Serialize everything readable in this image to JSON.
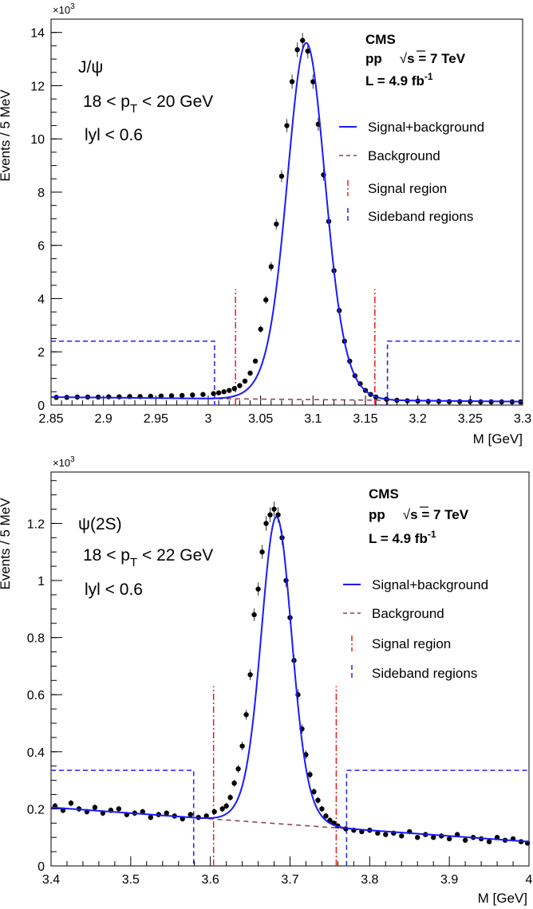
{
  "colors": {
    "fit": "#1a1aff",
    "background": "#8b3a50",
    "signal": "#e8201a",
    "sideband": "#2020ff",
    "points": "#000000"
  },
  "chart_data": [
    {
      "type": "scatter",
      "ylabel": "Events / 5 MeV",
      "xlabel": "M [GeV]",
      "yexp": "×10",
      "yexp_sup": "3",
      "xlim": [
        2.85,
        3.3
      ],
      "ylim": [
        0,
        14.5
      ],
      "xticks": [
        2.85,
        2.9,
        2.95,
        3.0,
        3.05,
        3.1,
        3.15,
        3.2,
        3.25,
        3.3
      ],
      "xtick_labels": [
        "2.85",
        "2.9",
        "2.95",
        "3",
        "3.05",
        "3.1",
        "3.15",
        "3.2",
        "3.25",
        "3.3"
      ],
      "yticks": [
        0,
        2,
        4,
        6,
        8,
        10,
        12,
        14
      ],
      "ytick_labels": [
        "0",
        "2",
        "4",
        "6",
        "8",
        "10",
        "12",
        "14"
      ],
      "ytick_minor": 0.5,
      "labels": {
        "particle": "J/ψ",
        "pt_pre": "18 < p",
        "pt_sub": "T",
        "pt_post": " < 20 GeV",
        "rapidity": "lyl < 0.6"
      },
      "cms": {
        "name": "CMS",
        "pp": "pp",
        "sqrt": "√",
        "s": "s",
        "energy": " = 7 TeV",
        "lumi": "L = 4.9 fb",
        "lumi_sup": "-1"
      },
      "legend": [
        {
          "label": "Signal+background",
          "style": "fit"
        },
        {
          "label": "Background",
          "style": "background"
        },
        {
          "label": "Signal region",
          "style": "signal"
        },
        {
          "label": "Sideband regions",
          "style": "sideband"
        }
      ],
      "signal_region": {
        "edges": [
          3.026,
          3.159
        ],
        "height": 4.35
      },
      "sideband_regions": [
        {
          "from": 2.85,
          "to": 3.006,
          "height": 2.4
        },
        {
          "from": 3.171,
          "to": 3.3,
          "height": 2.4
        }
      ],
      "background_line": {
        "x": [
          2.85,
          3.3
        ],
        "y": [
          0.3,
          0.13
        ]
      },
      "fit": {
        "peak": 3.0935,
        "amplitude": 13.4,
        "sigma": 0.0165,
        "core_fraction": 0.72,
        "tail_width": 1.55
      },
      "points": {
        "x": [
          2.855,
          2.865,
          2.875,
          2.885,
          2.895,
          2.905,
          2.915,
          2.925,
          2.935,
          2.945,
          2.955,
          2.965,
          2.975,
          2.985,
          2.995,
          3.005,
          3.01,
          3.015,
          3.02,
          3.025,
          3.03,
          3.035,
          3.04,
          3.045,
          3.05,
          3.055,
          3.06,
          3.065,
          3.07,
          3.075,
          3.08,
          3.085,
          3.09,
          3.095,
          3.1,
          3.105,
          3.11,
          3.115,
          3.12,
          3.125,
          3.13,
          3.135,
          3.14,
          3.145,
          3.15,
          3.155,
          3.16,
          3.17,
          3.18,
          3.19,
          3.2,
          3.21,
          3.22,
          3.23,
          3.24,
          3.25,
          3.26,
          3.27,
          3.28,
          3.29,
          3.298
        ],
        "y": [
          0.29,
          0.29,
          0.3,
          0.3,
          0.3,
          0.31,
          0.31,
          0.32,
          0.32,
          0.33,
          0.34,
          0.35,
          0.36,
          0.38,
          0.4,
          0.43,
          0.46,
          0.5,
          0.55,
          0.62,
          0.73,
          0.9,
          1.2,
          1.65,
          2.85,
          3.95,
          5.2,
          6.8,
          8.6,
          10.5,
          12.15,
          13.35,
          13.7,
          13.3,
          12.15,
          10.55,
          8.65,
          6.9,
          5.05,
          3.55,
          2.4,
          1.65,
          1.1,
          0.8,
          0.55,
          0.4,
          0.3,
          0.22,
          0.18,
          0.16,
          0.15,
          0.14,
          0.14,
          0.13,
          0.13,
          0.13,
          0.12,
          0.12,
          0.12,
          0.12,
          0.12
        ]
      }
    },
    {
      "type": "scatter",
      "ylabel": "Events / 5 MeV",
      "xlabel": "M [GeV]",
      "yexp": "×10",
      "yexp_sup": "3",
      "xlim": [
        3.4,
        4.0
      ],
      "ylim": [
        0,
        1.38
      ],
      "xticks": [
        3.4,
        3.5,
        3.6,
        3.7,
        3.8,
        3.9,
        4.0
      ],
      "xtick_labels": [
        "3.4",
        "3.5",
        "3.6",
        "3.7",
        "3.8",
        "3.9",
        "4"
      ],
      "yticks": [
        0,
        0.2,
        0.4,
        0.6,
        0.8,
        1.0,
        1.2
      ],
      "ytick_labels": [
        "0",
        "0.2",
        "0.4",
        "0.6",
        "0.8",
        "1",
        "1.2"
      ],
      "ytick_minor": 0.05,
      "labels": {
        "particle": "ψ(2S)",
        "pt_pre": "18 < p",
        "pt_sub": "T",
        "pt_post": " < 22 GeV",
        "rapidity": "lyl < 0.6"
      },
      "cms": {
        "name": "CMS",
        "pp": "pp",
        "sqrt": "√",
        "s": "s",
        "energy": " = 7 TeV",
        "lumi": "L = 4.9 fb",
        "lumi_sup": "-1"
      },
      "legend": [
        {
          "label": "Signal+background",
          "style": "fit"
        },
        {
          "label": "Background",
          "style": "background"
        },
        {
          "label": "Signal region",
          "style": "signal"
        },
        {
          "label": "Sideband regions",
          "style": "sideband"
        }
      ],
      "signal_region": {
        "edges": [
          3.604,
          3.758
        ],
        "height": 0.63
      },
      "sideband_regions": [
        {
          "from": 3.4,
          "to": 3.579,
          "height": 0.335
        },
        {
          "from": 3.771,
          "to": 4.0,
          "height": 0.335
        }
      ],
      "background_line": {
        "x": [
          3.4,
          4.0
        ],
        "y": [
          0.205,
          0.085
        ]
      },
      "fit": {
        "peak": 3.683,
        "amplitude": 1.075,
        "sigma": 0.0175,
        "core_fraction": 0.72,
        "tail_width": 1.55
      },
      "points": {
        "x": [
          3.405,
          3.415,
          3.425,
          3.435,
          3.445,
          3.455,
          3.465,
          3.475,
          3.485,
          3.495,
          3.505,
          3.515,
          3.525,
          3.535,
          3.545,
          3.555,
          3.565,
          3.575,
          3.585,
          3.595,
          3.605,
          3.615,
          3.62,
          3.625,
          3.63,
          3.635,
          3.64,
          3.645,
          3.65,
          3.655,
          3.66,
          3.665,
          3.67,
          3.675,
          3.68,
          3.685,
          3.69,
          3.695,
          3.7,
          3.705,
          3.71,
          3.715,
          3.72,
          3.725,
          3.73,
          3.735,
          3.74,
          3.745,
          3.75,
          3.755,
          3.76,
          3.77,
          3.78,
          3.79,
          3.8,
          3.81,
          3.82,
          3.83,
          3.84,
          3.85,
          3.86,
          3.87,
          3.88,
          3.89,
          3.9,
          3.91,
          3.92,
          3.93,
          3.94,
          3.95,
          3.96,
          3.97,
          3.98,
          3.99,
          3.998
        ],
        "y": [
          0.21,
          0.195,
          0.22,
          0.2,
          0.19,
          0.205,
          0.185,
          0.195,
          0.2,
          0.18,
          0.185,
          0.19,
          0.17,
          0.18,
          0.185,
          0.175,
          0.165,
          0.18,
          0.17,
          0.175,
          0.19,
          0.2,
          0.21,
          0.24,
          0.29,
          0.34,
          0.42,
          0.53,
          0.67,
          0.88,
          0.97,
          1.1,
          1.2,
          1.23,
          1.25,
          1.23,
          1.15,
          1.0,
          0.87,
          0.72,
          0.6,
          0.48,
          0.39,
          0.32,
          0.26,
          0.23,
          0.2,
          0.175,
          0.16,
          0.15,
          0.14,
          0.13,
          0.125,
          0.12,
          0.125,
          0.115,
          0.11,
          0.115,
          0.105,
          0.12,
          0.1,
          0.11,
          0.1,
          0.105,
          0.095,
          0.11,
          0.09,
          0.1,
          0.095,
          0.085,
          0.1,
          0.09,
          0.095,
          0.085,
          0.08
        ]
      }
    }
  ]
}
